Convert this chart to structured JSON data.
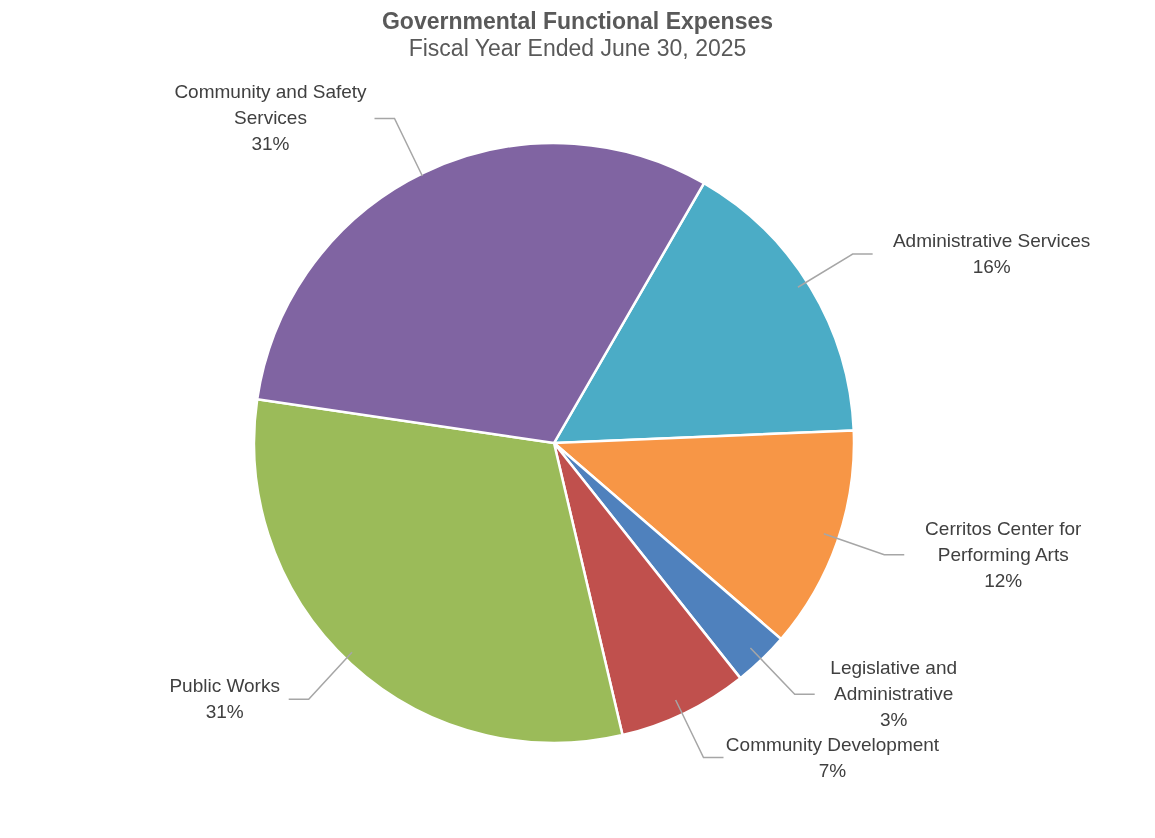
{
  "chart_data": {
    "type": "pie",
    "title": "Governmental Functional Expenses",
    "subtitle": "Fiscal Year Ended June 30, 2025",
    "categories": [
      "Administrative Services",
      "Cerritos Center for Performing Arts",
      "Legislative and Administrative",
      "Community Development",
      "Public Works",
      "Community and Safety Services"
    ],
    "values": [
      16,
      12,
      3,
      7,
      31,
      31
    ],
    "value_labels": [
      "16%",
      "12%",
      "3%",
      "7%",
      "31%",
      "31%"
    ],
    "colors": [
      "#4bacc6",
      "#f79646",
      "#4f81bd",
      "#c0504d",
      "#9bbb59",
      "#8064a2"
    ],
    "legend": false
  }
}
